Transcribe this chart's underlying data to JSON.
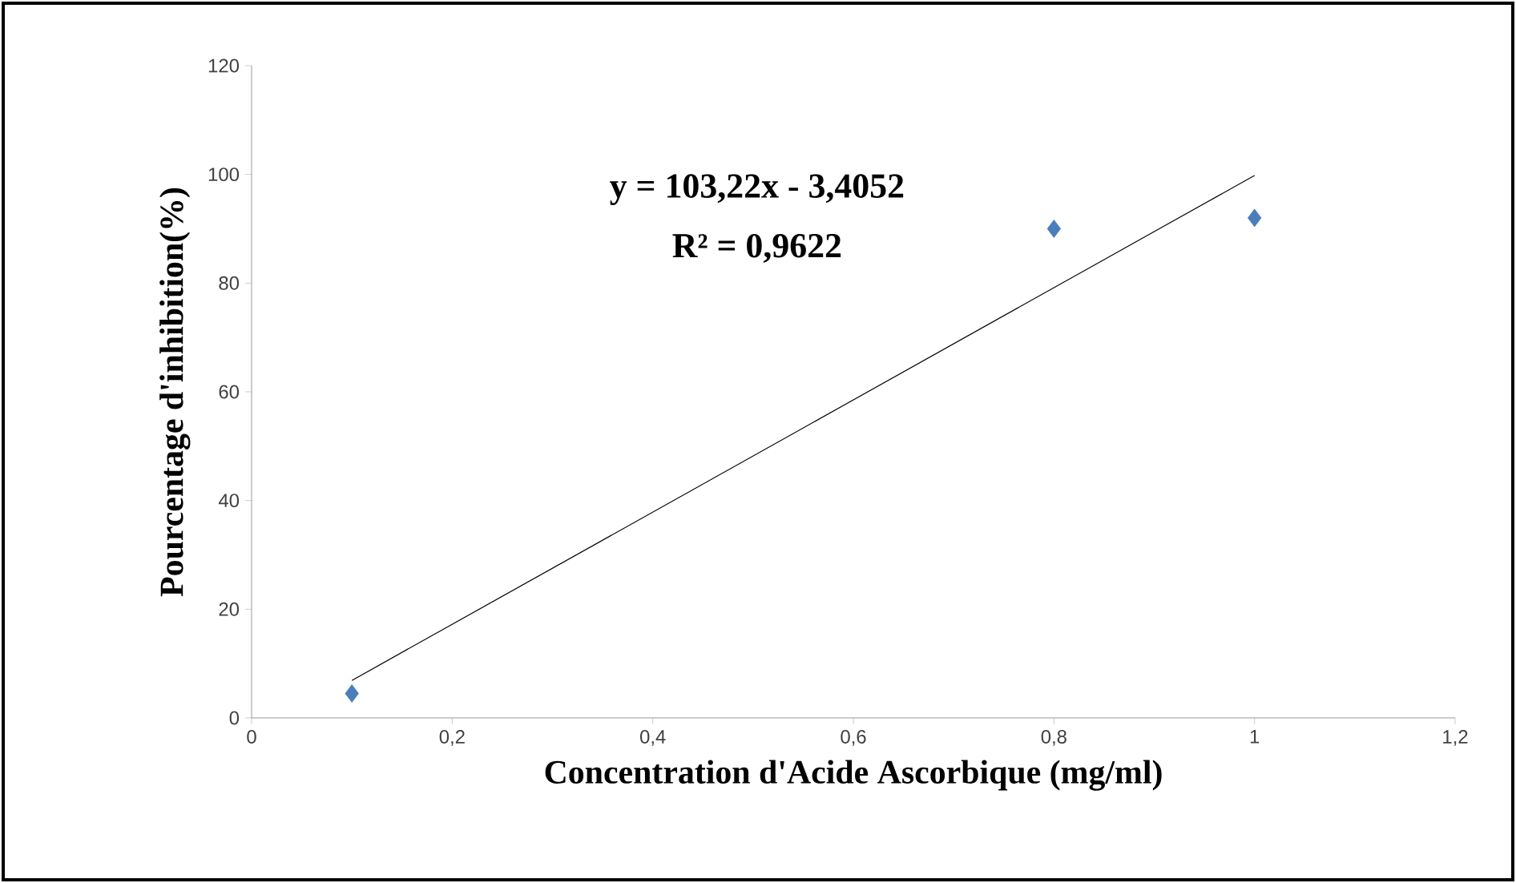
{
  "chart_data": {
    "type": "scatter",
    "xlabel": "Concentration d'Acide Ascorbique (mg/ml)",
    "ylabel": "Pourcentage d'inhibition(%)",
    "annotations": [
      "y = 103,22x - 3,4052",
      "R² = 0,9622"
    ],
    "x": [
      0.1,
      0.8,
      1
    ],
    "series": [
      {
        "color": "#4a7ebb",
        "marker": "diamond",
        "values": [
          4.5,
          90,
          92
        ]
      },
      {
        "type": "line",
        "color": "#000000",
        "marker": "none",
        "x": [
          0.1,
          1
        ],
        "values": [
          6.9,
          99.8
        ]
      }
    ],
    "xlim": [
      0,
      1.2
    ],
    "xticks": [
      {
        "value": 0,
        "label": "0"
      },
      {
        "value": 0.2,
        "label": "0,2"
      },
      {
        "value": 0.4,
        "label": "0,4"
      },
      {
        "value": 0.6,
        "label": "0,6"
      },
      {
        "value": 0.8,
        "label": "0,8"
      },
      {
        "value": 1,
        "label": "1"
      },
      {
        "value": 1.2,
        "label": "1,2"
      }
    ],
    "ylim": [
      0,
      120
    ],
    "yticks": [
      0,
      20,
      40,
      60,
      80,
      100,
      120
    ]
  }
}
